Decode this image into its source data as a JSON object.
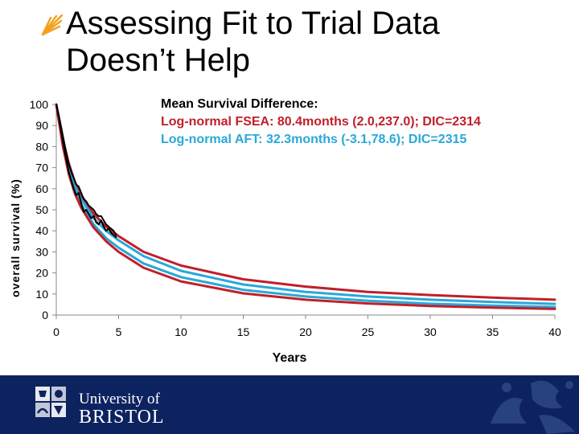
{
  "slide": {
    "title_line1": "Assessing Fit to Trial Data",
    "title_line2": "Doesn’t Help",
    "university_line1": "University of",
    "university_line2": "BRISTOL",
    "footer_color": "#0d2360"
  },
  "annotation": {
    "line0": "Mean Survival Difference:",
    "line1": "Log-normal FSEA: 80.4months (2.0,237.0); DIC=2314",
    "line2": "Log-normal AFT: 32.3months (-3.1,78.6); DIC=2315"
  },
  "chart_data": {
    "type": "line",
    "xlabel": "Years",
    "ylabel": "overall survival (%)",
    "xlim": [
      0,
      40
    ],
    "ylim": [
      0,
      100
    ],
    "x_ticks": [
      "0",
      "5",
      "10",
      "15",
      "20",
      "25",
      "30",
      "35",
      "40"
    ],
    "y_ticks": [
      "0",
      "10",
      "20",
      "30",
      "40",
      "50",
      "60",
      "70",
      "80",
      "90",
      "100"
    ],
    "grid": false,
    "series": [
      {
        "color": "#c0202a",
        "x": [
          0,
          0.5,
          1,
          1.5,
          2,
          3,
          4,
          5,
          7,
          10,
          15,
          20,
          25,
          30,
          35,
          40
        ],
        "y": [
          100,
          84,
          72,
          63,
          57,
          48,
          42,
          37.5,
          30,
          23.5,
          17,
          13.5,
          11,
          9.5,
          8.3,
          7.3
        ]
      },
      {
        "color": "#29a8d8",
        "x": [
          0,
          0.5,
          1,
          1.5,
          2,
          3,
          4,
          5,
          7,
          10,
          15,
          20,
          25,
          30,
          35,
          40
        ],
        "y": [
          100,
          83,
          70,
          61,
          55,
          46,
          40,
          35.5,
          28,
          21,
          14.5,
          11,
          8.8,
          7.3,
          6.2,
          5.3
        ]
      },
      {
        "color": "#29a8d8",
        "x": [
          0,
          0.5,
          1,
          1.5,
          2,
          3,
          4,
          5,
          7,
          10,
          15,
          20,
          25,
          30,
          35,
          40
        ],
        "y": [
          100,
          82,
          68,
          59,
          52.5,
          43,
          36.5,
          32,
          24.5,
          18,
          12,
          8.8,
          6.8,
          5.4,
          4.5,
          3.8
        ]
      },
      {
        "color": "#c0202a",
        "x": [
          0,
          0.5,
          1,
          1.5,
          2,
          3,
          4,
          5,
          7,
          10,
          15,
          20,
          25,
          30,
          35,
          40
        ],
        "y": [
          100,
          81,
          67,
          57.5,
          51,
          41.5,
          35,
          30,
          22.5,
          16,
          10.3,
          7.3,
          5.5,
          4.3,
          3.5,
          2.9
        ]
      },
      {
        "color": "#000000",
        "x": [
          0,
          0.2,
          0.4,
          0.6,
          0.8,
          1,
          1.2,
          1.4,
          1.6,
          1.8,
          2,
          2.2,
          2.4,
          2.6,
          2.8,
          3,
          3.2,
          3.4,
          3.6,
          3.8,
          4,
          4.2,
          4.4,
          4.6,
          4.8
        ],
        "y": [
          100,
          94,
          87,
          80,
          74,
          68,
          64,
          60,
          57,
          58,
          53,
          49,
          50,
          48,
          46,
          47,
          44,
          43,
          45,
          42,
          40,
          41,
          39,
          38,
          37
        ]
      },
      {
        "color": "#000000",
        "x": [
          0,
          0.2,
          0.4,
          0.6,
          0.8,
          1,
          1.2,
          1.4,
          1.6,
          1.8,
          2,
          2.2,
          2.4,
          2.6,
          2.8,
          3,
          3.2,
          3.4,
          3.6,
          3.8,
          4,
          4.2,
          4.4,
          4.6,
          4.8
        ],
        "y": [
          100,
          95,
          89,
          83,
          77,
          72,
          68,
          65,
          62,
          61,
          58,
          55,
          54,
          52,
          51,
          50,
          48,
          47,
          47,
          45,
          43,
          42,
          41,
          40,
          38
        ]
      }
    ]
  }
}
